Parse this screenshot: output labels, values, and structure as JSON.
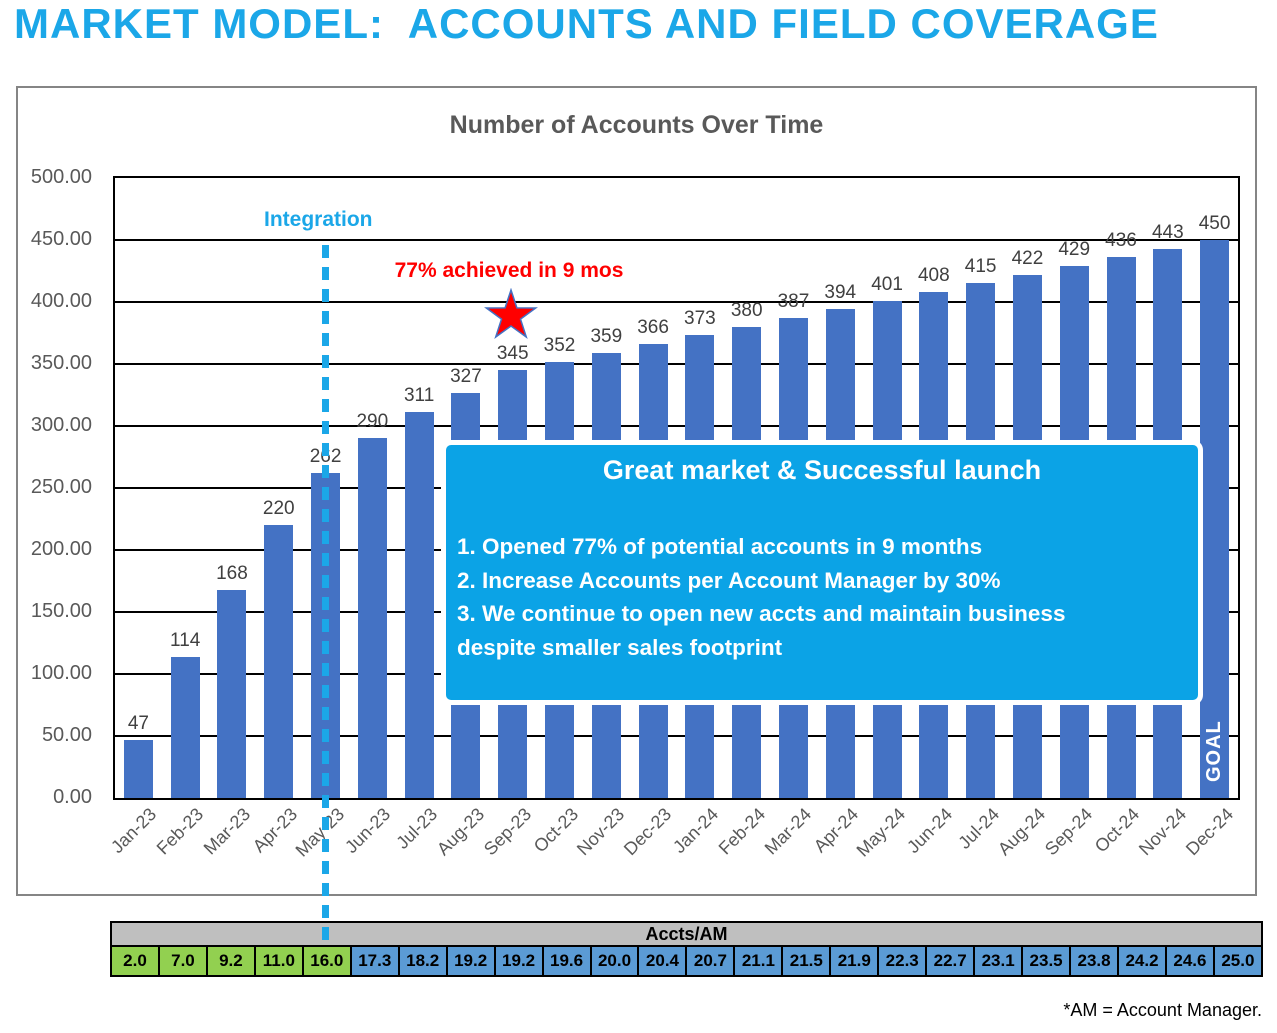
{
  "page_title": "MARKET MODEL:  ACCOUNTS AND FIELD COVERAGE",
  "chart_data": {
    "type": "bar",
    "title": "Number of Accounts Over Time",
    "categories": [
      "Jan-23",
      "Feb-23",
      "Mar-23",
      "Apr-23",
      "May-23",
      "Jun-23",
      "Jul-23",
      "Aug-23",
      "Sep-23",
      "Oct-23",
      "Nov-23",
      "Dec-23",
      "Jan-24",
      "Feb-24",
      "Mar-24",
      "Apr-24",
      "May-24",
      "Jun-24",
      "Jul-24",
      "Aug-24",
      "Sep-24",
      "Oct-24",
      "Nov-24",
      "Dec-24"
    ],
    "values": [
      47,
      114,
      168,
      220,
      262,
      290,
      311,
      327,
      345,
      352,
      359,
      366,
      373,
      380,
      387,
      394,
      401,
      408,
      415,
      422,
      429,
      436,
      443,
      450
    ],
    "ylim": [
      0,
      500
    ],
    "ytick_step": 50,
    "y_tick_labels": [
      "0.00",
      "50.00",
      "100.00",
      "150.00",
      "200.00",
      "250.00",
      "300.00",
      "350.00",
      "400.00",
      "450.00",
      "500.00"
    ],
    "grid": true,
    "legend": "none",
    "annotations": {
      "integration_label": "Integration",
      "achievement_label": "77% achieved in 9 mos",
      "goal_label": "GOAL",
      "callout": {
        "title": "Great market & Successful launch",
        "lines": [
          "1. Opened 77% of potential accounts in 9 months",
          "2. Increase Accounts per Account Manager by 30%",
          "3. We continue to open new accts and maintain business",
          "despite smaller sales footprint"
        ]
      }
    }
  },
  "accts_table": {
    "header": "Accts/AM",
    "values": [
      "2.0",
      "7.0",
      "9.2",
      "11.0",
      "16.0",
      "17.3",
      "18.2",
      "19.2",
      "19.2",
      "19.6",
      "20.0",
      "20.4",
      "20.7",
      "21.1",
      "21.5",
      "21.9",
      "22.3",
      "22.7",
      "23.1",
      "23.5",
      "23.8",
      "24.2",
      "24.6",
      "25.0"
    ],
    "green_count": 5
  },
  "footnote": "*AM = Account Manager.",
  "colors": {
    "accent": "#1BA7E8",
    "callout_bg": "#0BA3E6",
    "bar_blue": "#4472C4",
    "star_red": "#FF0000",
    "label_red": "#FF0000",
    "table_green": "#92D050",
    "table_blue": "#5B9BD5",
    "table_header_bg": "#BFBFBF",
    "axis_text": "#595959",
    "value_text": "#404040"
  }
}
